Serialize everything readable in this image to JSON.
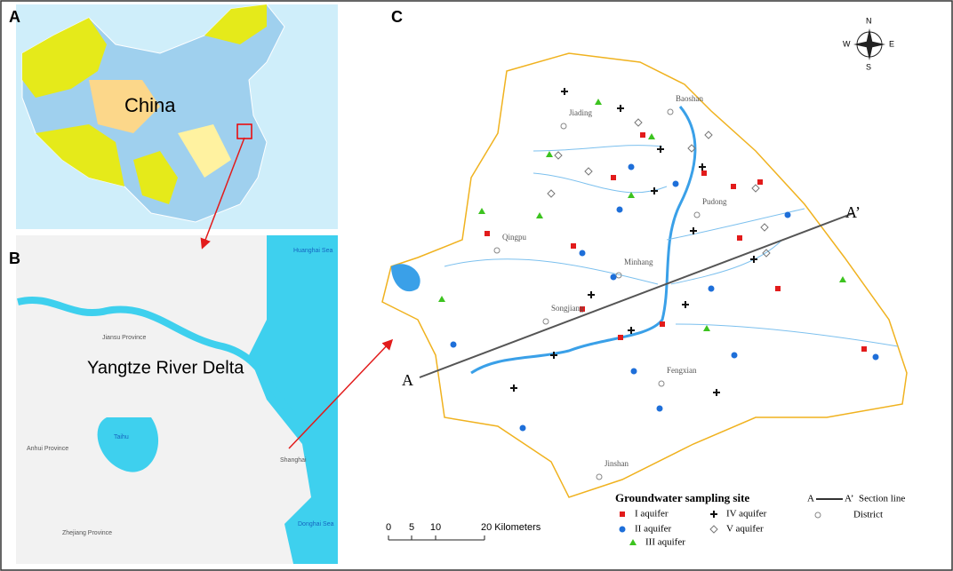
{
  "panels": {
    "a": {
      "label": "A",
      "country": "China"
    },
    "b": {
      "label": "B",
      "region": "Yangtze River Delta",
      "places": [
        "Huanghai Sea",
        "Jiansu Province",
        "Anhui Province",
        "Zhejiang Province",
        "Taihu",
        "Shanghai",
        "Donghai Sea"
      ]
    },
    "c": {
      "label": "C",
      "compass": {
        "n": "N",
        "s": "S",
        "e": "E",
        "w": "W"
      },
      "districts": [
        "Baoshan",
        "Jiading",
        "Pudong",
        "Qingpu",
        "Minhang",
        "Songjiang",
        "Fengxian",
        "Jinshan"
      ],
      "section_ends": [
        "A",
        "A’"
      ],
      "legend": {
        "title": "Groundwater sampling site",
        "items": [
          "I aquifer",
          "II aquifer",
          "III aquifer",
          "IV aquifer",
          "V aquifer"
        ],
        "section_a": "A",
        "section_b": "A’",
        "section_line": "Section line",
        "district": "District"
      },
      "scale": [
        "0",
        "5",
        "10",
        "20 Kilometers"
      ]
    }
  }
}
